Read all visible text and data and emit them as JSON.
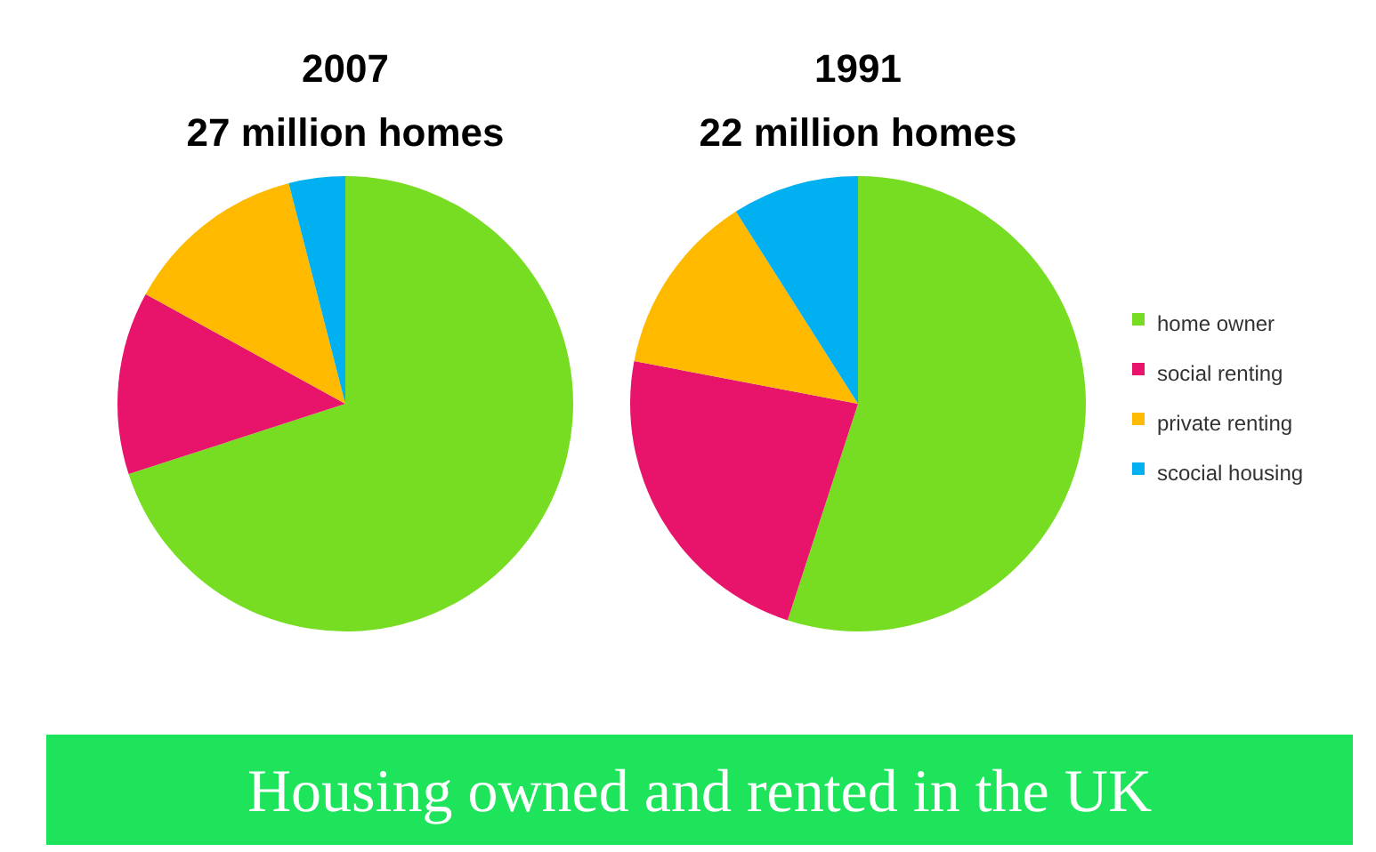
{
  "chart_data": [
    {
      "type": "pie",
      "title": "2007",
      "subtitle": "27 million homes",
      "categories": [
        null,
        null,
        null,
        null
      ],
      "values": [
        70,
        13,
        13,
        4
      ],
      "colors": [
        "#77dd22",
        "#e8136b",
        "#ffba00",
        "#00b0f0"
      ],
      "legend": false
    },
    {
      "type": "pie",
      "title": "1991",
      "subtitle": "22 million homes",
      "categories": [
        "home owner",
        "social renting",
        "private renting",
        "scocial housing"
      ],
      "values": [
        55,
        23,
        13,
        9
      ],
      "colors": [
        "#77dd22",
        "#e8136b",
        "#ffba00",
        "#00b0f0"
      ],
      "legend": "right"
    },
    {
      "type": "other",
      "title": "Housing owned and rented in the UK"
    }
  ]
}
